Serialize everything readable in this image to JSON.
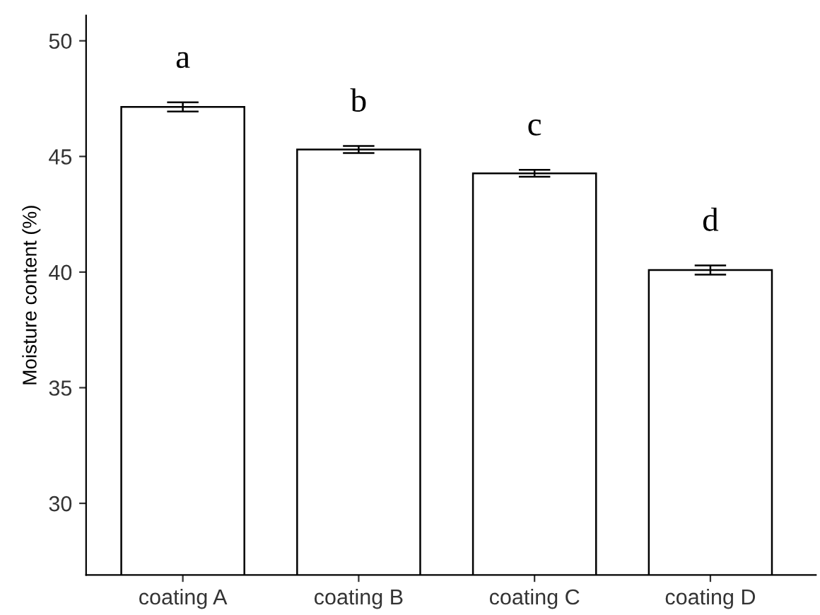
{
  "chart_data": {
    "type": "bar",
    "ylabel": "Moisture content (%)",
    "categories": [
      "coating A",
      "coating B",
      "coating C",
      "coating D"
    ],
    "values": [
      47.14,
      45.3,
      44.27,
      40.09
    ],
    "errors": [
      0.2,
      0.15,
      0.15,
      0.2
    ],
    "color": "#ffffff",
    "ylim": [
      26.9,
      51.1
    ],
    "yticks": [
      30,
      35,
      40,
      45,
      50
    ],
    "grid": false,
    "annotations": [
      "a",
      "b",
      "c",
      "d"
    ]
  }
}
